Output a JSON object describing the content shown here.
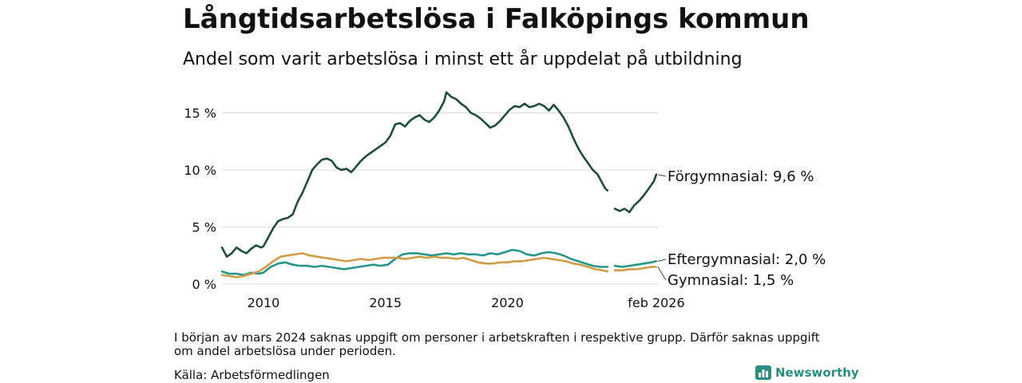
{
  "title": "Långtidsarbetslösa i Falköpings kommun",
  "subtitle": "Andel som varit arbetslösa i minst ett år uppdelat på utbildning",
  "note": "I början av mars 2024 saknas uppgift om personer i arbetskraften i respektive grupp. Därför saknas uppgift om andel arbetslösa under perioden.",
  "source": "Källa: Arbetsförmedlingen",
  "brand": {
    "name": "Newsworthy",
    "icon": "bar-chart-logo-icon"
  },
  "colors": {
    "forgymnasial": "#1e4d3f",
    "eftergymnasial": "#26958a",
    "gymnasial": "#cf9b47",
    "grid": "#dcdcdc",
    "text": "#111111"
  },
  "chart_data": {
    "type": "line",
    "title": "Långtidsarbetslösa i Falköpings kommun",
    "subtitle": "Andel som varit arbetslösa i minst ett år uppdelat på utbildning",
    "xlabel": "",
    "ylabel": "",
    "xlim": [
      2008.3,
      2026.2
    ],
    "ylim": [
      0,
      16.5
    ],
    "grid": true,
    "yticks": [
      {
        "value": 0,
        "label": "0 %"
      },
      {
        "value": 5,
        "label": "5 %"
      },
      {
        "value": 10,
        "label": "10 %"
      },
      {
        "value": 15,
        "label": "15 %"
      }
    ],
    "xticks": [
      {
        "value": 2010,
        "label": "2010"
      },
      {
        "value": 2015,
        "label": "2015"
      },
      {
        "value": 2020,
        "label": "2020"
      },
      {
        "value": 2026.1,
        "label": "feb 2026"
      }
    ],
    "series": [
      {
        "name": "Förgymnasial",
        "end_label": "Förgymnasial: 9,6 %",
        "color_key": "forgymnasial",
        "segments": [
          [
            [
              2008.3,
              3.2
            ],
            [
              2008.5,
              2.4
            ],
            [
              2008.7,
              2.7
            ],
            [
              2008.9,
              3.2
            ],
            [
              2009.1,
              2.9
            ],
            [
              2009.3,
              2.7
            ],
            [
              2009.5,
              3.1
            ],
            [
              2009.7,
              3.4
            ],
            [
              2009.9,
              3.2
            ],
            [
              2010.0,
              3.3
            ],
            [
              2010.2,
              4.1
            ],
            [
              2010.4,
              4.9
            ],
            [
              2010.6,
              5.5
            ],
            [
              2010.8,
              5.7
            ],
            [
              2011.0,
              5.8
            ],
            [
              2011.2,
              6.1
            ],
            [
              2011.4,
              7.2
            ],
            [
              2011.6,
              8.0
            ],
            [
              2011.8,
              9.0
            ],
            [
              2012.0,
              10.0
            ],
            [
              2012.2,
              10.5
            ],
            [
              2012.4,
              10.9
            ],
            [
              2012.6,
              11.0
            ],
            [
              2012.8,
              10.8
            ],
            [
              2013.0,
              10.2
            ],
            [
              2013.2,
              10.0
            ],
            [
              2013.4,
              10.1
            ],
            [
              2013.6,
              9.8
            ],
            [
              2013.8,
              10.3
            ],
            [
              2014.0,
              10.8
            ],
            [
              2014.2,
              11.2
            ],
            [
              2014.4,
              11.5
            ],
            [
              2014.6,
              11.8
            ],
            [
              2014.8,
              12.1
            ],
            [
              2015.0,
              12.4
            ],
            [
              2015.2,
              13.0
            ],
            [
              2015.4,
              14.0
            ],
            [
              2015.6,
              14.1
            ],
            [
              2015.8,
              13.8
            ],
            [
              2016.0,
              14.3
            ],
            [
              2016.2,
              14.6
            ],
            [
              2016.4,
              14.8
            ],
            [
              2016.6,
              14.4
            ],
            [
              2016.8,
              14.2
            ],
            [
              2017.0,
              14.6
            ],
            [
              2017.2,
              15.2
            ],
            [
              2017.4,
              16.0
            ],
            [
              2017.5,
              16.8
            ],
            [
              2017.7,
              16.4
            ],
            [
              2017.9,
              16.2
            ],
            [
              2018.1,
              15.8
            ],
            [
              2018.3,
              15.5
            ],
            [
              2018.5,
              15.0
            ],
            [
              2018.7,
              14.8
            ],
            [
              2018.9,
              14.5
            ],
            [
              2019.1,
              14.1
            ],
            [
              2019.3,
              13.7
            ],
            [
              2019.5,
              13.9
            ],
            [
              2019.7,
              14.3
            ],
            [
              2019.9,
              14.8
            ],
            [
              2020.1,
              15.3
            ],
            [
              2020.3,
              15.6
            ],
            [
              2020.5,
              15.5
            ],
            [
              2020.7,
              15.8
            ],
            [
              2020.9,
              15.5
            ],
            [
              2021.1,
              15.6
            ],
            [
              2021.3,
              15.8
            ],
            [
              2021.5,
              15.6
            ],
            [
              2021.7,
              15.2
            ],
            [
              2021.9,
              15.7
            ],
            [
              2022.1,
              15.2
            ],
            [
              2022.3,
              14.6
            ],
            [
              2022.5,
              13.8
            ],
            [
              2022.7,
              12.8
            ],
            [
              2022.9,
              11.9
            ],
            [
              2023.1,
              11.2
            ],
            [
              2023.3,
              10.6
            ],
            [
              2023.5,
              10.0
            ],
            [
              2023.7,
              9.6
            ],
            [
              2023.9,
              8.8
            ],
            [
              2024.0,
              8.4
            ],
            [
              2024.1,
              8.2
            ]
          ],
          [
            [
              2024.4,
              6.6
            ],
            [
              2024.6,
              6.4
            ],
            [
              2024.8,
              6.6
            ],
            [
              2025.0,
              6.3
            ],
            [
              2025.2,
              6.9
            ],
            [
              2025.4,
              7.3
            ],
            [
              2025.6,
              7.8
            ],
            [
              2025.8,
              8.4
            ],
            [
              2026.0,
              9.0
            ],
            [
              2026.1,
              9.6
            ]
          ]
        ]
      },
      {
        "name": "Eftergymnasial",
        "end_label": "Eftergymnasial: 2,0 %",
        "color_key": "eftergymnasial",
        "segments": [
          [
            [
              2008.3,
              1.1
            ],
            [
              2008.6,
              0.9
            ],
            [
              2008.9,
              0.9
            ],
            [
              2009.2,
              0.8
            ],
            [
              2009.5,
              1.0
            ],
            [
              2009.8,
              0.9
            ],
            [
              2010.0,
              1.0
            ],
            [
              2010.3,
              1.5
            ],
            [
              2010.6,
              1.8
            ],
            [
              2010.9,
              1.9
            ],
            [
              2011.2,
              1.7
            ],
            [
              2011.5,
              1.6
            ],
            [
              2011.8,
              1.6
            ],
            [
              2012.1,
              1.5
            ],
            [
              2012.4,
              1.6
            ],
            [
              2012.7,
              1.5
            ],
            [
              2013.0,
              1.4
            ],
            [
              2013.3,
              1.3
            ],
            [
              2013.6,
              1.4
            ],
            [
              2013.9,
              1.5
            ],
            [
              2014.2,
              1.6
            ],
            [
              2014.5,
              1.7
            ],
            [
              2014.8,
              1.6
            ],
            [
              2015.1,
              1.7
            ],
            [
              2015.4,
              2.2
            ],
            [
              2015.7,
              2.6
            ],
            [
              2016.0,
              2.7
            ],
            [
              2016.3,
              2.7
            ],
            [
              2016.6,
              2.6
            ],
            [
              2016.9,
              2.5
            ],
            [
              2017.2,
              2.6
            ],
            [
              2017.5,
              2.7
            ],
            [
              2017.8,
              2.6
            ],
            [
              2018.1,
              2.7
            ],
            [
              2018.4,
              2.6
            ],
            [
              2018.7,
              2.6
            ],
            [
              2019.0,
              2.5
            ],
            [
              2019.3,
              2.7
            ],
            [
              2019.6,
              2.6
            ],
            [
              2019.9,
              2.8
            ],
            [
              2020.2,
              3.0
            ],
            [
              2020.5,
              2.9
            ],
            [
              2020.8,
              2.6
            ],
            [
              2021.1,
              2.5
            ],
            [
              2021.4,
              2.7
            ],
            [
              2021.7,
              2.8
            ],
            [
              2022.0,
              2.7
            ],
            [
              2022.3,
              2.5
            ],
            [
              2022.6,
              2.2
            ],
            [
              2022.9,
              2.0
            ],
            [
              2023.2,
              1.8
            ],
            [
              2023.5,
              1.6
            ],
            [
              2023.8,
              1.5
            ],
            [
              2024.1,
              1.5
            ]
          ],
          [
            [
              2024.4,
              1.6
            ],
            [
              2024.7,
              1.5
            ],
            [
              2025.0,
              1.6
            ],
            [
              2025.3,
              1.7
            ],
            [
              2025.6,
              1.8
            ],
            [
              2025.9,
              1.9
            ],
            [
              2026.1,
              2.0
            ]
          ]
        ]
      },
      {
        "name": "Gymnasial",
        "end_label": "Gymnasial: 1,5 %",
        "color_key": "gymnasial",
        "segments": [
          [
            [
              2008.3,
              0.8
            ],
            [
              2008.6,
              0.7
            ],
            [
              2008.9,
              0.6
            ],
            [
              2009.2,
              0.7
            ],
            [
              2009.5,
              0.9
            ],
            [
              2009.8,
              1.1
            ],
            [
              2010.1,
              1.5
            ],
            [
              2010.4,
              2.0
            ],
            [
              2010.7,
              2.4
            ],
            [
              2011.0,
              2.5
            ],
            [
              2011.3,
              2.6
            ],
            [
              2011.6,
              2.7
            ],
            [
              2011.9,
              2.5
            ],
            [
              2012.2,
              2.4
            ],
            [
              2012.5,
              2.3
            ],
            [
              2012.8,
              2.2
            ],
            [
              2013.1,
              2.1
            ],
            [
              2013.4,
              2.0
            ],
            [
              2013.7,
              2.1
            ],
            [
              2014.0,
              2.2
            ],
            [
              2014.3,
              2.1
            ],
            [
              2014.6,
              2.2
            ],
            [
              2014.9,
              2.3
            ],
            [
              2015.2,
              2.3
            ],
            [
              2015.5,
              2.3
            ],
            [
              2015.8,
              2.2
            ],
            [
              2016.1,
              2.3
            ],
            [
              2016.4,
              2.4
            ],
            [
              2016.7,
              2.3
            ],
            [
              2017.0,
              2.4
            ],
            [
              2017.3,
              2.3
            ],
            [
              2017.6,
              2.3
            ],
            [
              2017.9,
              2.2
            ],
            [
              2018.2,
              2.3
            ],
            [
              2018.5,
              2.1
            ],
            [
              2018.8,
              1.9
            ],
            [
              2019.1,
              1.8
            ],
            [
              2019.4,
              1.8
            ],
            [
              2019.7,
              1.9
            ],
            [
              2020.0,
              1.9
            ],
            [
              2020.3,
              2.0
            ],
            [
              2020.6,
              2.0
            ],
            [
              2020.9,
              2.1
            ],
            [
              2021.2,
              2.2
            ],
            [
              2021.5,
              2.3
            ],
            [
              2021.8,
              2.2
            ],
            [
              2022.1,
              2.1
            ],
            [
              2022.4,
              2.0
            ],
            [
              2022.7,
              1.8
            ],
            [
              2023.0,
              1.7
            ],
            [
              2023.3,
              1.5
            ],
            [
              2023.6,
              1.3
            ],
            [
              2023.9,
              1.2
            ],
            [
              2024.1,
              1.1
            ]
          ],
          [
            [
              2024.4,
              1.2
            ],
            [
              2024.7,
              1.2
            ],
            [
              2025.0,
              1.3
            ],
            [
              2025.3,
              1.3
            ],
            [
              2025.6,
              1.4
            ],
            [
              2025.9,
              1.5
            ],
            [
              2026.1,
              1.5
            ]
          ]
        ]
      }
    ]
  }
}
